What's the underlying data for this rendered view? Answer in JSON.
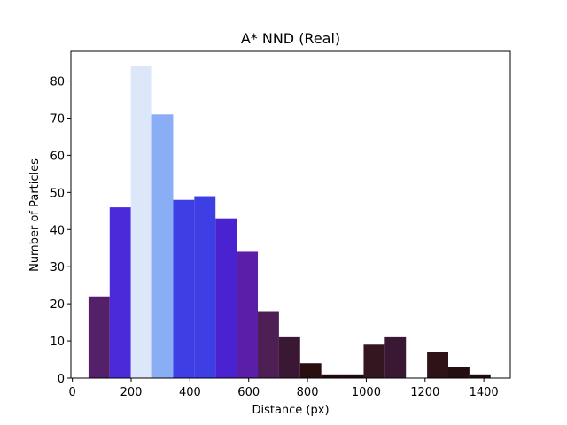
{
  "chart_data": {
    "type": "bar",
    "title": "A* NND (Real)",
    "xlabel": "Distance (px)",
    "ylabel": "Number of Particles",
    "xlim": [
      -5,
      1490
    ],
    "ylim": [
      0,
      88
    ],
    "xticks": [
      0,
      200,
      400,
      600,
      800,
      1000,
      1200,
      1400
    ],
    "yticks": [
      0,
      10,
      20,
      30,
      40,
      50,
      60,
      70,
      80
    ],
    "grid": false,
    "bins": [
      {
        "x0": 55,
        "x1": 127,
        "value": 22,
        "color": "#55206a"
      },
      {
        "x0": 127,
        "x1": 199,
        "value": 46,
        "color": "#4a2ad9"
      },
      {
        "x0": 199,
        "x1": 271,
        "value": 84,
        "color": "#dce8fa"
      },
      {
        "x0": 271,
        "x1": 343,
        "value": 71,
        "color": "#8aaef5"
      },
      {
        "x0": 343,
        "x1": 415,
        "value": 48,
        "color": "#3d3ee4"
      },
      {
        "x0": 415,
        "x1": 487,
        "value": 49,
        "color": "#3d3ee4"
      },
      {
        "x0": 487,
        "x1": 559,
        "value": 43,
        "color": "#4a22d2"
      },
      {
        "x0": 559,
        "x1": 631,
        "value": 34,
        "color": "#5a1fa6"
      },
      {
        "x0": 631,
        "x1": 703,
        "value": 18,
        "color": "#4e1f55"
      },
      {
        "x0": 703,
        "x1": 775,
        "value": 11,
        "color": "#3a1833"
      },
      {
        "x0": 775,
        "x1": 847,
        "value": 4,
        "color": "#2a0d0f"
      },
      {
        "x0": 847,
        "x1": 919,
        "value": 1,
        "color": "#200a0c"
      },
      {
        "x0": 919,
        "x1": 991,
        "value": 1,
        "color": "#200a0c"
      },
      {
        "x0": 991,
        "x1": 1063,
        "value": 9,
        "color": "#331620"
      },
      {
        "x0": 1063,
        "x1": 1135,
        "value": 11,
        "color": "#3a1833"
      },
      {
        "x0": 1135,
        "x1": 1207,
        "value": 0,
        "color": "#200a0c"
      },
      {
        "x0": 1207,
        "x1": 1279,
        "value": 7,
        "color": "#2d1218"
      },
      {
        "x0": 1279,
        "x1": 1351,
        "value": 3,
        "color": "#250e12"
      },
      {
        "x0": 1351,
        "x1": 1423,
        "value": 1,
        "color": "#200a0c"
      }
    ]
  }
}
